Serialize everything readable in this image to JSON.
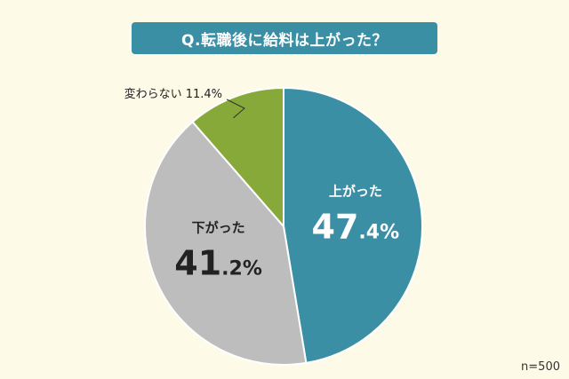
{
  "title": "Q.転職後に給料は上がった？",
  "sample_size_label": "n=500",
  "colors": {
    "background": "#fdfbe8",
    "title_bg": "#3b8fa4",
    "up": "#3b8fa4",
    "down": "#bdbdbd",
    "same": "#86a93a"
  },
  "chart_data": {
    "type": "pie",
    "slices": [
      {
        "label": "上がった",
        "value": 47.4,
        "value_main": "47",
        "value_frac": ".4%",
        "color": "#3b8fa4",
        "text_color": "#ffffff"
      },
      {
        "label": "下がった",
        "value": 41.2,
        "value_main": "41",
        "value_frac": ".2%",
        "color": "#bdbdbd",
        "text_color": "#222222"
      },
      {
        "label": "変わらない",
        "value": 11.4,
        "value_text": "11.4%",
        "color": "#86a93a",
        "text_color": "#222222",
        "external": true
      }
    ]
  }
}
